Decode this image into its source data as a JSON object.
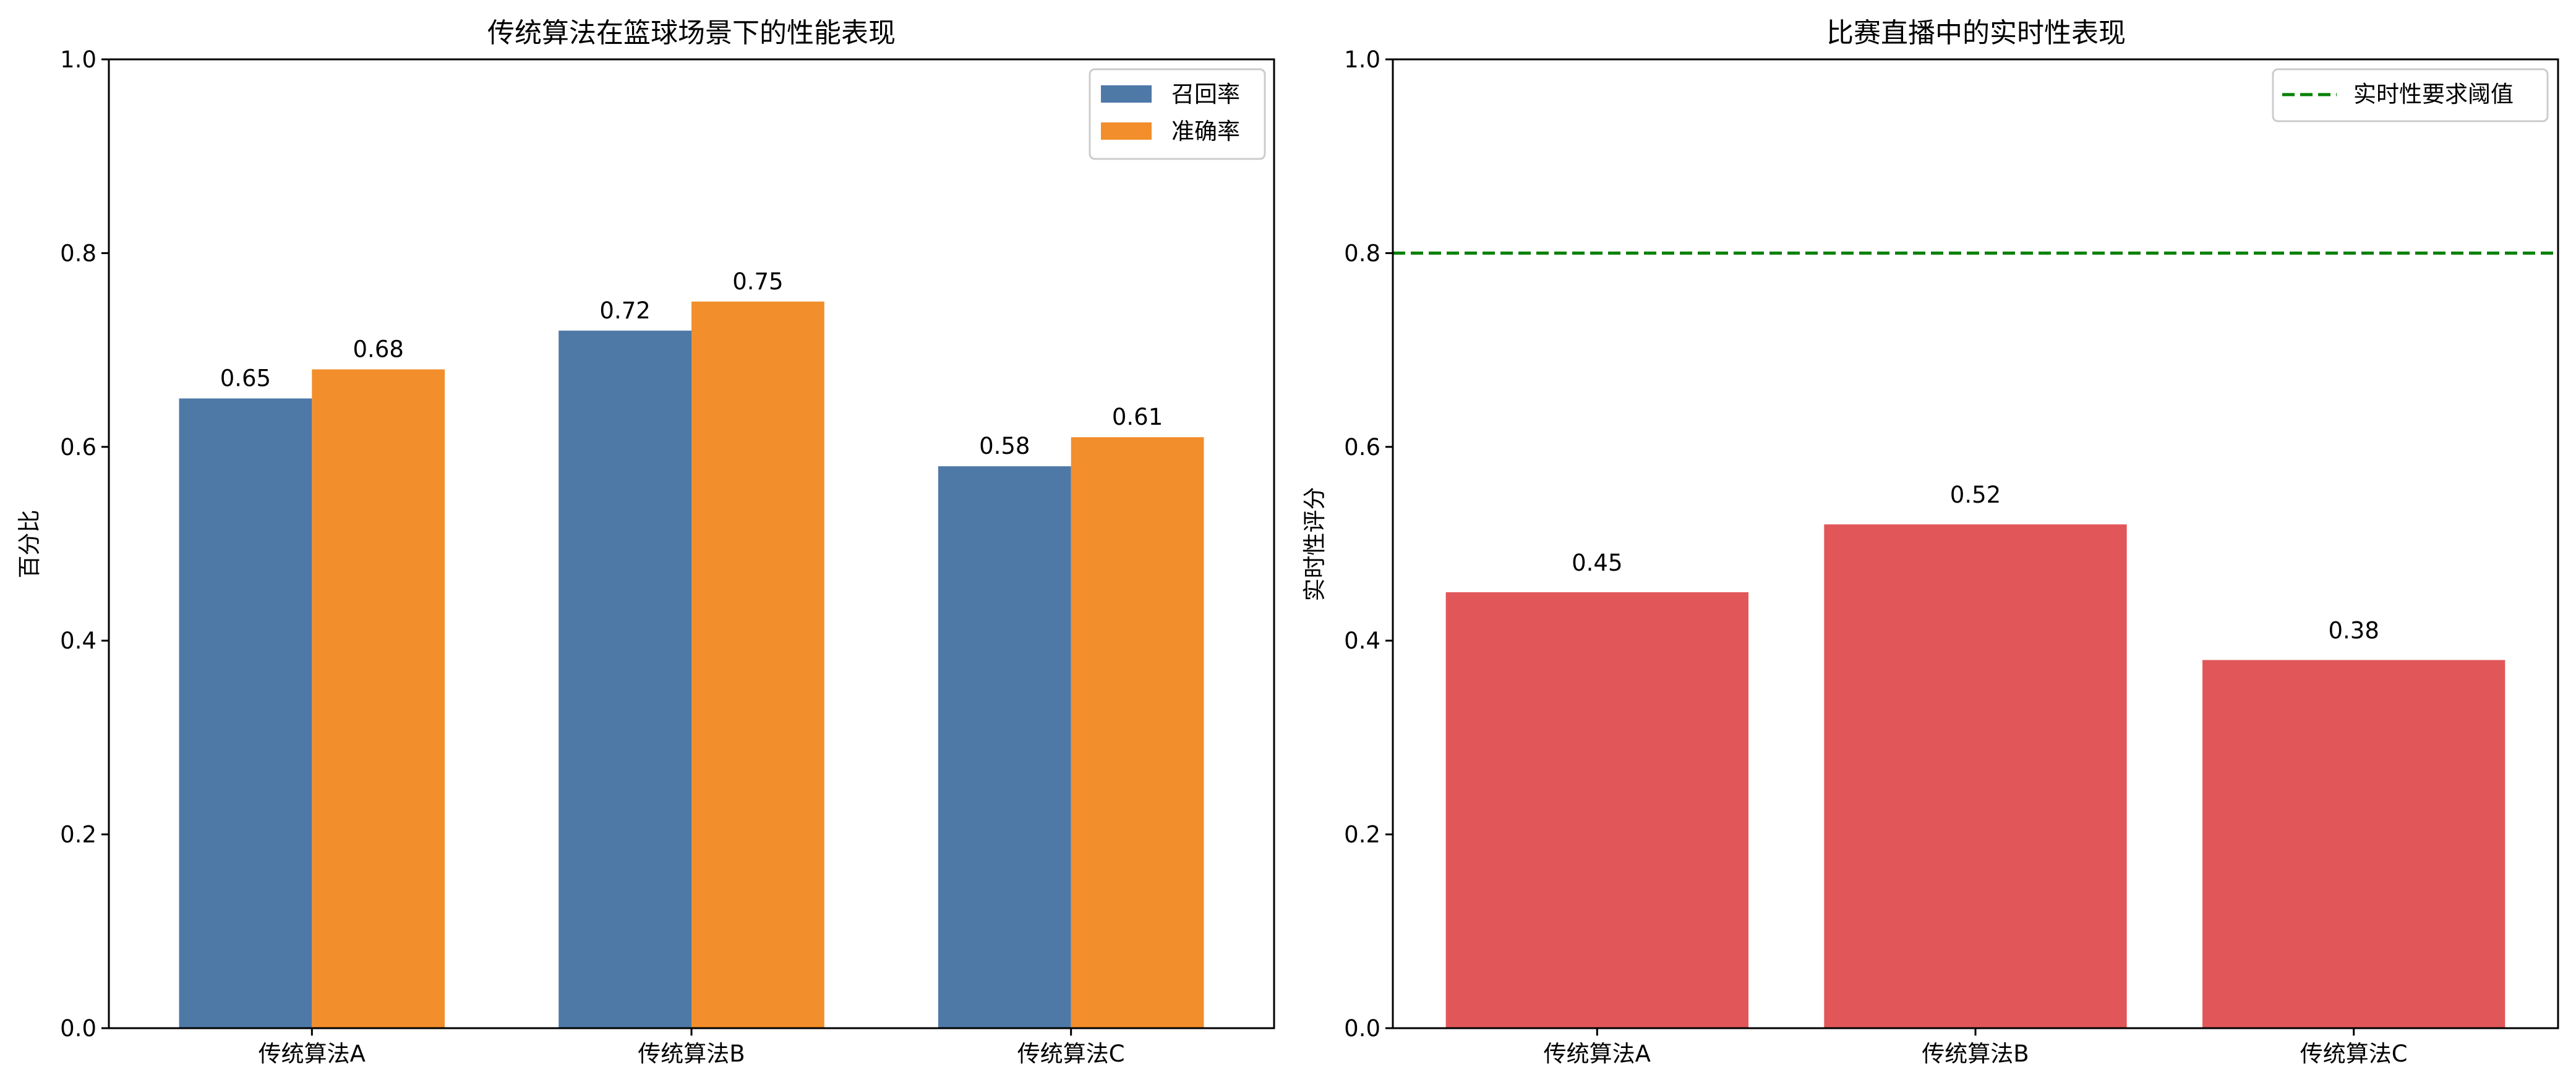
{
  "chart_data": [
    {
      "type": "bar",
      "title": "传统算法在篮球场景下的性能表现",
      "xlabel": "",
      "ylabel": "百分比",
      "ylim": [
        0,
        1.0
      ],
      "yticks": [
        "0.0",
        "0.2",
        "0.4",
        "0.6",
        "0.8",
        "1.0"
      ],
      "categories": [
        "传统算法A",
        "传统算法B",
        "传统算法C"
      ],
      "series": [
        {
          "name": "召回率",
          "values": [
            0.65,
            0.72,
            0.58
          ],
          "labels": [
            "0.65",
            "0.72",
            "0.58"
          ],
          "color": "#4e79a7"
        },
        {
          "name": "准确率",
          "values": [
            0.68,
            0.75,
            0.61
          ],
          "labels": [
            "0.68",
            "0.75",
            "0.61"
          ],
          "color": "#f28e2b"
        }
      ],
      "legend": "top-right",
      "grid": false
    },
    {
      "type": "bar",
      "title": "比赛直播中的实时性表现",
      "xlabel": "",
      "ylabel": "实时性评分",
      "ylim": [
        0,
        1.0
      ],
      "yticks": [
        "0.0",
        "0.2",
        "0.4",
        "0.6",
        "0.8",
        "1.0"
      ],
      "categories": [
        "传统算法A",
        "传统算法B",
        "传统算法C"
      ],
      "values": [
        0.45,
        0.52,
        0.38
      ],
      "labels": [
        "0.45",
        "0.52",
        "0.38"
      ],
      "color": "#e15759",
      "threshold": {
        "name": "实时性要求阈值",
        "value": 0.8,
        "color": "#008000"
      },
      "legend": "top-right",
      "grid": false
    }
  ]
}
